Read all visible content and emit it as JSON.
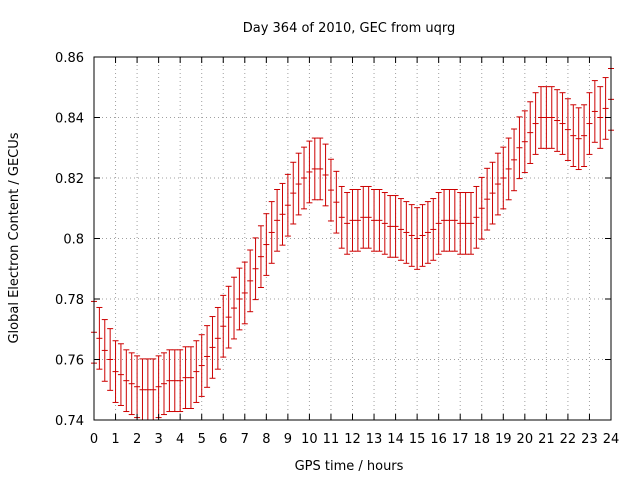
{
  "chart_data": {
    "type": "line",
    "title": "Day 364 of 2010, GEC from uqrg",
    "xlabel": "GPS time / hours",
    "ylabel": "Global Electron Content / GECUs",
    "xlim": [
      0,
      24
    ],
    "ylim": [
      0.74,
      0.86
    ],
    "grid": true,
    "xticks": [
      0,
      1,
      2,
      3,
      4,
      5,
      6,
      7,
      8,
      9,
      10,
      11,
      12,
      13,
      14,
      15,
      16,
      17,
      18,
      19,
      20,
      21,
      22,
      23,
      24
    ],
    "yticks": [
      0.74,
      0.76,
      0.78,
      0.8,
      0.82,
      0.84,
      0.86
    ],
    "xtick_labels": [
      "0",
      "1",
      "2",
      "3",
      "4",
      "5",
      "6",
      "7",
      "8",
      "9",
      "10",
      "11",
      "12",
      "13",
      "14",
      "15",
      "16",
      "17",
      "18",
      "19",
      "20",
      "21",
      "22",
      "23",
      "24"
    ],
    "ytick_labels": [
      "0.74",
      "0.76",
      "0.78",
      "0.8",
      "0.82",
      "0.84",
      "0.86"
    ],
    "series_color": "#cc0000",
    "error": 0.0102,
    "x": [
      0,
      0.25,
      0.5,
      0.75,
      1,
      1.25,
      1.5,
      1.75,
      2,
      2.25,
      2.5,
      2.75,
      3,
      3.25,
      3.5,
      3.75,
      4,
      4.25,
      4.5,
      4.75,
      5,
      5.25,
      5.5,
      5.75,
      6,
      6.25,
      6.5,
      6.75,
      7,
      7.25,
      7.5,
      7.75,
      8,
      8.25,
      8.5,
      8.75,
      9,
      9.25,
      9.5,
      9.75,
      10,
      10.25,
      10.5,
      10.75,
      11,
      11.25,
      11.5,
      11.75,
      12,
      12.25,
      12.5,
      12.75,
      13,
      13.25,
      13.5,
      13.75,
      14,
      14.25,
      14.5,
      14.75,
      15,
      15.25,
      15.5,
      15.75,
      16,
      16.25,
      16.5,
      16.75,
      17,
      17.25,
      17.5,
      17.75,
      18,
      18.25,
      18.5,
      18.75,
      19,
      19.25,
      19.5,
      19.75,
      20,
      20.25,
      20.5,
      20.75,
      21,
      21.25,
      21.5,
      21.75,
      22,
      22.25,
      22.5,
      22.75,
      23,
      23.25,
      23.5,
      23.75,
      24
    ],
    "y": [
      0.769,
      0.767,
      0.763,
      0.76,
      0.756,
      0.755,
      0.753,
      0.752,
      0.751,
      0.75,
      0.75,
      0.75,
      0.751,
      0.752,
      0.753,
      0.753,
      0.753,
      0.754,
      0.754,
      0.756,
      0.758,
      0.761,
      0.764,
      0.767,
      0.771,
      0.774,
      0.777,
      0.78,
      0.782,
      0.786,
      0.79,
      0.794,
      0.798,
      0.802,
      0.806,
      0.808,
      0.811,
      0.815,
      0.818,
      0.82,
      0.822,
      0.823,
      0.823,
      0.821,
      0.816,
      0.812,
      0.807,
      0.805,
      0.806,
      0.806,
      0.807,
      0.807,
      0.806,
      0.806,
      0.805,
      0.804,
      0.804,
      0.803,
      0.802,
      0.801,
      0.8,
      0.801,
      0.802,
      0.803,
      0.805,
      0.806,
      0.806,
      0.806,
      0.805,
      0.805,
      0.805,
      0.807,
      0.81,
      0.813,
      0.815,
      0.818,
      0.82,
      0.823,
      0.826,
      0.83,
      0.832,
      0.835,
      0.838,
      0.84,
      0.84,
      0.84,
      0.839,
      0.838,
      0.836,
      0.834,
      0.833,
      0.834,
      0.838,
      0.842,
      0.84,
      0.843,
      0.846
    ]
  }
}
